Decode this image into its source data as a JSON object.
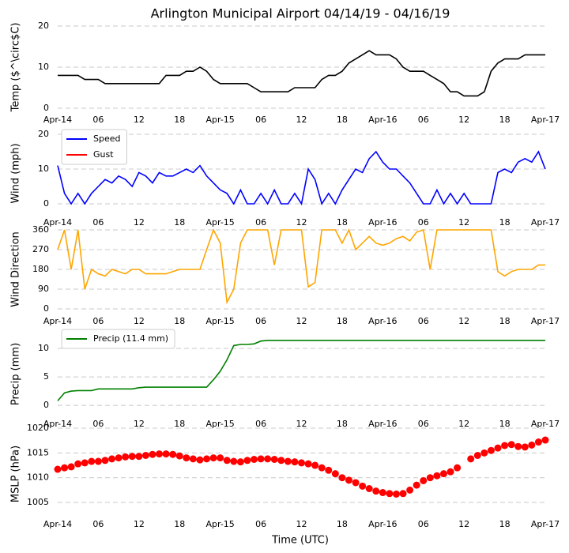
{
  "chart_data": [
    {
      "type": "line",
      "title": "Arlington Municipal Airport 04/14/19 - 04/16/19",
      "ylabel": "Temp ($^\\circ$C)",
      "x": [
        0,
        1,
        2,
        3,
        4,
        5,
        6,
        7,
        8,
        9,
        10,
        11,
        12,
        13,
        14,
        15,
        16,
        17,
        18,
        19,
        20,
        21,
        22,
        23,
        24,
        25,
        26,
        27,
        28,
        29,
        30,
        31,
        32,
        33,
        34,
        35,
        36,
        37,
        38,
        39,
        40,
        41,
        42,
        43,
        44,
        45,
        46,
        47,
        48,
        49,
        50,
        51,
        52,
        53,
        54,
        55,
        56,
        57,
        58,
        59,
        60,
        61,
        62,
        63,
        64,
        65,
        66,
        67,
        68,
        69,
        70,
        71,
        72
      ],
      "series": [
        {
          "color": "#000000",
          "values": [
            8,
            8,
            8,
            8,
            7,
            7,
            7,
            6,
            6,
            6,
            6,
            6,
            6,
            6,
            6,
            6,
            8,
            8,
            8,
            9,
            9,
            10,
            9,
            7,
            6,
            6,
            6,
            6,
            6,
            5,
            4,
            4,
            4,
            4,
            4,
            5,
            5,
            5,
            5,
            7,
            8,
            8,
            9,
            11,
            12,
            13,
            14,
            13,
            13,
            13,
            12,
            10,
            9,
            9,
            9,
            8,
            7,
            6,
            4,
            4,
            3,
            3,
            3,
            4,
            9,
            11,
            12,
            12,
            12,
            13,
            13,
            13,
            13
          ]
        }
      ],
      "xlim": [
        0,
        72
      ],
      "ylim": [
        0,
        20
      ],
      "yticks": [
        0,
        10,
        20
      ],
      "grid": true,
      "xticks": [
        {
          "value": 0,
          "label": "Apr-14"
        },
        {
          "value": 6,
          "label": "06"
        },
        {
          "value": 12,
          "label": "12"
        },
        {
          "value": 18,
          "label": "18"
        },
        {
          "value": 24,
          "label": "Apr-15"
        },
        {
          "value": 30,
          "label": "06"
        },
        {
          "value": 36,
          "label": "12"
        },
        {
          "value": 42,
          "label": "18"
        },
        {
          "value": 48,
          "label": "Apr-16"
        },
        {
          "value": 54,
          "label": "06"
        },
        {
          "value": 60,
          "label": "12"
        },
        {
          "value": 66,
          "label": "18"
        },
        {
          "value": 72,
          "label": "Apr-17"
        }
      ]
    },
    {
      "type": "line",
      "ylabel": "Wind (mph)",
      "legend": "upper left",
      "x": [
        0,
        1,
        2,
        3,
        4,
        5,
        6,
        7,
        8,
        9,
        10,
        11,
        12,
        13,
        14,
        15,
        16,
        17,
        18,
        19,
        20,
        21,
        22,
        23,
        24,
        25,
        26,
        27,
        28,
        29,
        30,
        31,
        32,
        33,
        34,
        35,
        36,
        37,
        38,
        39,
        40,
        41,
        42,
        43,
        44,
        45,
        46,
        47,
        48,
        49,
        50,
        51,
        52,
        53,
        54,
        55,
        56,
        57,
        58,
        59,
        60,
        61,
        62,
        63,
        64,
        65,
        66,
        67,
        68,
        69,
        70,
        71,
        72
      ],
      "series": [
        {
          "name": "Speed",
          "color": "#0000ff",
          "values": [
            11,
            3,
            0,
            3,
            0,
            3,
            5,
            7,
            6,
            8,
            7,
            5,
            9,
            8,
            6,
            9,
            8,
            8,
            9,
            10,
            9,
            11,
            8,
            6,
            4,
            3,
            0,
            4,
            0,
            0,
            3,
            0,
            4,
            0,
            0,
            3,
            0,
            10,
            7,
            0,
            3,
            0,
            4,
            7,
            10,
            9,
            13,
            15,
            12,
            10,
            10,
            8,
            6,
            3,
            0,
            0,
            4,
            0,
            3,
            0,
            3,
            0,
            0,
            0,
            0,
            9,
            10,
            9,
            12,
            13,
            12,
            15,
            10
          ]
        },
        {
          "name": "Gust",
          "color": "#ff0000",
          "values": [
            null,
            null,
            null,
            null,
            null,
            null,
            null,
            null,
            null,
            null,
            null,
            null,
            null,
            null,
            null,
            null,
            null,
            null,
            null,
            null,
            null,
            null,
            null,
            null,
            null,
            null,
            null,
            null,
            null,
            null,
            null,
            null,
            null,
            null,
            null,
            null,
            null,
            null,
            null,
            null,
            null,
            null,
            null,
            null,
            null,
            null,
            null,
            null,
            null,
            null,
            null,
            null,
            null,
            null,
            null,
            null,
            null,
            null,
            null,
            null,
            null,
            null,
            null,
            null,
            null,
            null,
            null,
            null,
            null,
            null,
            null,
            null,
            null
          ]
        }
      ],
      "xlim": [
        0,
        72
      ],
      "ylim": [
        -2.5,
        20
      ],
      "yticks": [
        0,
        10,
        20
      ],
      "grid": true,
      "xticks": [
        {
          "value": 0,
          "label": "Apr-14"
        },
        {
          "value": 6,
          "label": "06"
        },
        {
          "value": 12,
          "label": "12"
        },
        {
          "value": 18,
          "label": "18"
        },
        {
          "value": 24,
          "label": "Apr-15"
        },
        {
          "value": 30,
          "label": "06"
        },
        {
          "value": 36,
          "label": "12"
        },
        {
          "value": 42,
          "label": "18"
        },
        {
          "value": 48,
          "label": "Apr-16"
        },
        {
          "value": 54,
          "label": "06"
        },
        {
          "value": 60,
          "label": "12"
        },
        {
          "value": 66,
          "label": "18"
        },
        {
          "value": 72,
          "label": "Apr-17"
        }
      ]
    },
    {
      "type": "line",
      "ylabel": "Wind Direction",
      "x": [
        0,
        1,
        2,
        3,
        4,
        5,
        6,
        7,
        8,
        9,
        10,
        11,
        12,
        13,
        14,
        15,
        16,
        17,
        18,
        19,
        20,
        21,
        22,
        23,
        24,
        25,
        26,
        27,
        28,
        29,
        30,
        31,
        32,
        33,
        34,
        35,
        36,
        37,
        38,
        39,
        40,
        41,
        42,
        43,
        44,
        45,
        46,
        47,
        48,
        49,
        50,
        51,
        52,
        53,
        54,
        55,
        56,
        57,
        58,
        59,
        60,
        61,
        62,
        63,
        64,
        65,
        66,
        67,
        68,
        69,
        70,
        71,
        72
      ],
      "series": [
        {
          "color": "#ffa500",
          "values": [
            270,
            360,
            180,
            360,
            90,
            180,
            160,
            150,
            180,
            170,
            160,
            180,
            180,
            160,
            160,
            160,
            160,
            170,
            180,
            180,
            180,
            180,
            270,
            360,
            300,
            30,
            90,
            300,
            360,
            360,
            360,
            360,
            200,
            360,
            360,
            360,
            360,
            100,
            120,
            360,
            360,
            360,
            300,
            360,
            270,
            300,
            330,
            300,
            290,
            300,
            320,
            330,
            310,
            350,
            360,
            180,
            360,
            360,
            360,
            360,
            360,
            360,
            360,
            360,
            360,
            170,
            150,
            170,
            180,
            180,
            180,
            200,
            200
          ]
        }
      ],
      "xlim": [
        0,
        72
      ],
      "ylim": [
        0,
        360
      ],
      "yticks": [
        0,
        90,
        180,
        270,
        360
      ],
      "grid": true,
      "xticks": [
        {
          "value": 0,
          "label": "Apr-14"
        },
        {
          "value": 6,
          "label": "06"
        },
        {
          "value": 12,
          "label": "12"
        },
        {
          "value": 18,
          "label": "18"
        },
        {
          "value": 24,
          "label": "Apr-15"
        },
        {
          "value": 30,
          "label": "06"
        },
        {
          "value": 36,
          "label": "12"
        },
        {
          "value": 42,
          "label": "18"
        },
        {
          "value": 48,
          "label": "Apr-16"
        },
        {
          "value": 54,
          "label": "06"
        },
        {
          "value": 60,
          "label": "12"
        },
        {
          "value": 66,
          "label": "18"
        },
        {
          "value": 72,
          "label": "Apr-17"
        }
      ]
    },
    {
      "type": "line",
      "ylabel": "Precip (mm)",
      "legend": "upper left",
      "x": [
        0,
        1,
        2,
        3,
        4,
        5,
        6,
        7,
        8,
        9,
        10,
        11,
        12,
        13,
        14,
        15,
        16,
        17,
        18,
        19,
        20,
        21,
        22,
        23,
        24,
        25,
        26,
        27,
        28,
        29,
        30,
        31,
        32,
        33,
        34,
        35,
        36,
        37,
        38,
        39,
        40,
        41,
        42,
        43,
        44,
        45,
        46,
        47,
        48,
        49,
        50,
        51,
        52,
        53,
        54,
        55,
        56,
        57,
        58,
        59,
        60,
        61,
        62,
        63,
        64,
        65,
        66,
        67,
        68,
        69,
        70,
        71,
        72
      ],
      "series": [
        {
          "name": "Precip (11.4 mm)",
          "color": "#008000",
          "values": [
            0.8,
            2.2,
            2.5,
            2.6,
            2.6,
            2.6,
            2.9,
            2.9,
            2.9,
            2.9,
            2.9,
            2.9,
            3.1,
            3.2,
            3.2,
            3.2,
            3.2,
            3.2,
            3.2,
            3.2,
            3.2,
            3.2,
            3.2,
            4.5,
            6,
            8,
            10.5,
            10.7,
            10.7,
            10.8,
            11.3,
            11.4,
            11.4,
            11.4,
            11.4,
            11.4,
            11.4,
            11.4,
            11.4,
            11.4,
            11.4,
            11.4,
            11.4,
            11.4,
            11.4,
            11.4,
            11.4,
            11.4,
            11.4,
            11.4,
            11.4,
            11.4,
            11.4,
            11.4,
            11.4,
            11.4,
            11.4,
            11.4,
            11.4,
            11.4,
            11.4,
            11.4,
            11.4,
            11.4,
            11.4,
            11.4,
            11.4,
            11.4,
            11.4,
            11.4,
            11.4,
            11.4,
            11.4
          ]
        }
      ],
      "xlim": [
        0,
        72
      ],
      "ylim": [
        -1.5,
        12.5
      ],
      "yticks": [
        0,
        5,
        10
      ],
      "grid": true,
      "xticks": [
        {
          "value": 0,
          "label": "Apr-14"
        },
        {
          "value": 6,
          "label": "06"
        },
        {
          "value": 12,
          "label": "12"
        },
        {
          "value": 18,
          "label": "18"
        },
        {
          "value": 24,
          "label": "Apr-15"
        },
        {
          "value": 30,
          "label": "06"
        },
        {
          "value": 36,
          "label": "12"
        },
        {
          "value": 42,
          "label": "18"
        },
        {
          "value": 48,
          "label": "Apr-16"
        },
        {
          "value": 54,
          "label": "06"
        },
        {
          "value": 60,
          "label": "12"
        },
        {
          "value": 66,
          "label": "18"
        },
        {
          "value": 72,
          "label": "Apr-17"
        }
      ]
    },
    {
      "type": "scatter",
      "ylabel": "MSLP (hPa)",
      "xlabel": "Time (UTC)",
      "x": [
        0,
        1,
        2,
        3,
        4,
        5,
        6,
        7,
        8,
        9,
        10,
        11,
        12,
        13,
        14,
        15,
        16,
        17,
        18,
        19,
        20,
        21,
        22,
        23,
        24,
        25,
        26,
        27,
        28,
        29,
        30,
        31,
        32,
        33,
        34,
        35,
        36,
        37,
        38,
        39,
        40,
        41,
        42,
        43,
        44,
        45,
        46,
        47,
        48,
        49,
        50,
        51,
        52,
        53,
        54,
        55,
        56,
        57,
        58,
        59,
        60,
        61,
        62,
        63,
        64,
        65,
        66,
        67,
        68,
        69,
        70,
        71,
        72
      ],
      "series": [
        {
          "color": "#ff0000",
          "values": [
            1011.7,
            1012,
            1012.2,
            1012.8,
            1013,
            1013.3,
            1013.3,
            1013.5,
            1013.8,
            1014,
            1014.2,
            1014.3,
            1014.3,
            1014.5,
            1014.7,
            1014.8,
            1014.8,
            1014.7,
            1014.4,
            1014,
            1013.8,
            1013.6,
            1013.8,
            1014,
            1014,
            1013.5,
            1013.3,
            1013.2,
            1013.5,
            1013.7,
            1013.8,
            1013.8,
            1013.7,
            1013.5,
            1013.3,
            1013.2,
            1013,
            1012.8,
            1012.5,
            1012,
            1011.5,
            1010.8,
            1010,
            1009.5,
            1009,
            1008.3,
            1007.8,
            1007.3,
            1007,
            1006.8,
            1006.7,
            1006.8,
            1007.5,
            1008.5,
            1009.4,
            1010,
            1010.4,
            1010.8,
            1011.2,
            1012,
            null,
            1013.8,
            1014.5,
            1015,
            1015.5,
            1016,
            1016.5,
            1016.7,
            1016.3,
            1016.2,
            1016.6,
            1017.2,
            1017.6
          ]
        }
      ],
      "xlim": [
        0,
        72
      ],
      "ylim": [
        1001.5,
        1020
      ],
      "yticks": [
        1005,
        1010,
        1015,
        1020
      ],
      "grid": true,
      "xticks": [
        {
          "value": 0,
          "label": "Apr-14"
        },
        {
          "value": 6,
          "label": "06"
        },
        {
          "value": 12,
          "label": "12"
        },
        {
          "value": 18,
          "label": "18"
        },
        {
          "value": 24,
          "label": "Apr-15"
        },
        {
          "value": 30,
          "label": "06"
        },
        {
          "value": 36,
          "label": "12"
        },
        {
          "value": 42,
          "label": "18"
        },
        {
          "value": 48,
          "label": "Apr-16"
        },
        {
          "value": 54,
          "label": "06"
        },
        {
          "value": 60,
          "label": "12"
        },
        {
          "value": 66,
          "label": "18"
        },
        {
          "value": 72,
          "label": "Apr-17"
        }
      ]
    }
  ]
}
